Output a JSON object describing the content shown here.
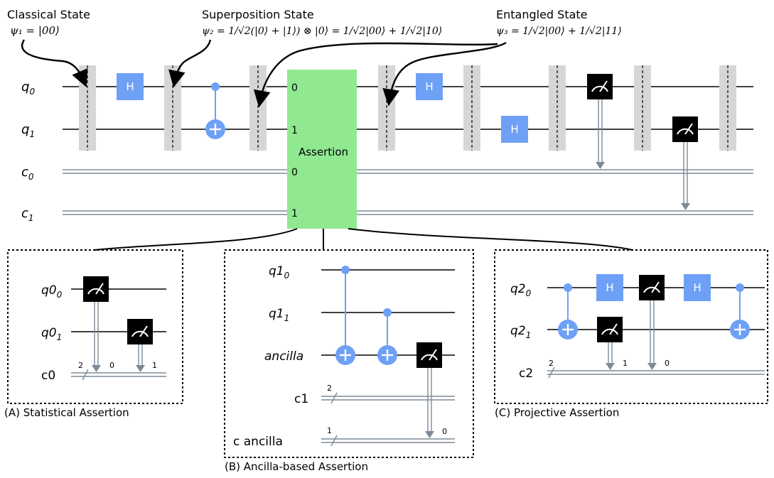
{
  "annotations": {
    "classical": {
      "title": "Classical State",
      "formula": "ψ₁ = |00⟩"
    },
    "superposition": {
      "title": "Superposition State",
      "formula": "ψ₂ = 1/√2(|0⟩ + |1⟩) ⊗ |0⟩ = 1/√2|00⟩ + 1/√2|10⟩"
    },
    "entangled": {
      "title": "Entangled State",
      "formula": "ψ₃ = 1/√2|00⟩ + 1/√2|11⟩"
    }
  },
  "main_circuit": {
    "wires": [
      {
        "base": "q",
        "sub": "0"
      },
      {
        "base": "q",
        "sub": "1"
      },
      {
        "base": "c",
        "sub": "0"
      },
      {
        "base": "c",
        "sub": "1"
      }
    ],
    "gate_label": "H",
    "assertion_label": "Assertion",
    "assertion_ports": [
      "0",
      "1",
      "0",
      "1"
    ]
  },
  "panel_a": {
    "caption": "(A) Statistical Assertion",
    "wires": [
      {
        "base": "q0",
        "sub": "0"
      },
      {
        "base": "q0",
        "sub": "1"
      }
    ],
    "creg_label": "c0",
    "creg_size": "2",
    "bit_labels": [
      "0",
      "1"
    ]
  },
  "panel_b": {
    "caption": "(B) Ancilla-based Assertion",
    "wires": [
      {
        "base": "q1",
        "sub": "0"
      },
      {
        "base": "q1",
        "sub": "1"
      }
    ],
    "ancilla_label": "ancilla",
    "creg1_label": "c1",
    "creg1_size": "2",
    "creg2_label": "c ancilla",
    "creg2_size": "1",
    "bit_label": "0"
  },
  "panel_c": {
    "caption": "(C) Projective Assertion",
    "wires": [
      {
        "base": "q2",
        "sub": "0"
      },
      {
        "base": "q2",
        "sub": "1"
      }
    ],
    "creg_label": "c2",
    "creg_size": "2",
    "gate_label": "H",
    "bit_labels": [
      "1",
      "0"
    ]
  },
  "colors": {
    "gate": "#6ea0f5",
    "assertion": "#90e890",
    "barrier": "#d6d6d6",
    "classical_wire": "#7d8a99",
    "measure": "#000000"
  }
}
